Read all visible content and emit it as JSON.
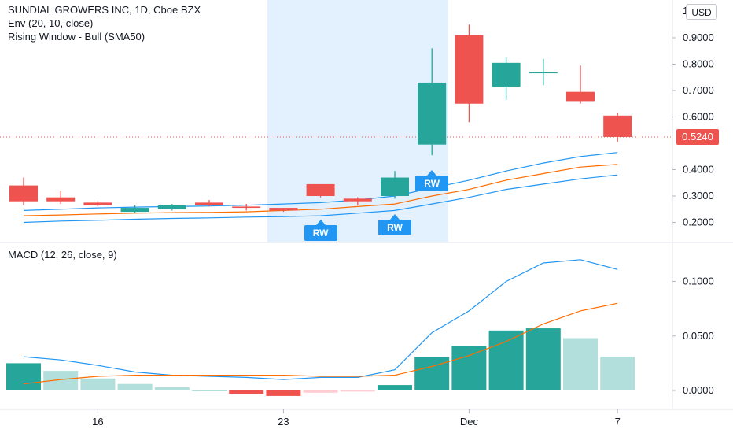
{
  "header": {
    "symbol_line": "SUNDIAL GROWERS INC, 1D, Cboe BZX",
    "indicator_1": "Env (20, 10, close)",
    "indicator_2": "Rising Window - Bull (SMA50)",
    "currency": "USD"
  },
  "price_scale": {
    "labels": [
      "0.9000",
      "0.8000",
      "0.7000",
      "0.6000",
      "0.4000",
      "0.3000",
      "0.2000"
    ],
    "label_values": [
      0.9,
      0.8,
      0.7,
      0.6,
      0.4,
      0.3,
      0.2
    ],
    "top_partial": "1",
    "last_price": "0.5240",
    "last_price_value": 0.524
  },
  "macd": {
    "legend": "MACD (12, 26, close, 9)",
    "scale_labels": [
      "0.1000",
      "0.0500",
      "0.0000"
    ],
    "scale_values": [
      0.1,
      0.05,
      0.0
    ]
  },
  "time_axis": {
    "labels": [
      "16",
      "23",
      "Dec",
      "7"
    ]
  },
  "badges": {
    "rw_label": "RW"
  },
  "colors": {
    "up": "#26a69a",
    "down": "#ef5350",
    "envelope": "#2196f3",
    "basis": "#ff6d00",
    "highlight": "#e3f0fd",
    "hist_up_strong": "#26a69a",
    "hist_up_weak": "#b2dfdb",
    "hist_down_strong": "#ef5350",
    "hist_down_weak": "#ffcdd2"
  },
  "chart_data": {
    "type": "candlestick",
    "candles": [
      {
        "o": 0.34,
        "h": 0.37,
        "l": 0.265,
        "c": 0.28
      },
      {
        "o": 0.295,
        "h": 0.32,
        "l": 0.27,
        "c": 0.28
      },
      {
        "o": 0.275,
        "h": 0.28,
        "l": 0.26,
        "c": 0.265
      },
      {
        "o": 0.24,
        "h": 0.265,
        "l": 0.235,
        "c": 0.255
      },
      {
        "o": 0.25,
        "h": 0.27,
        "l": 0.245,
        "c": 0.265
      },
      {
        "o": 0.275,
        "h": 0.285,
        "l": 0.26,
        "c": 0.265
      },
      {
        "o": 0.26,
        "h": 0.27,
        "l": 0.245,
        "c": 0.255
      },
      {
        "o": 0.255,
        "h": 0.255,
        "l": 0.24,
        "c": 0.245
      },
      {
        "o": 0.345,
        "h": 0.345,
        "l": 0.295,
        "c": 0.3
      },
      {
        "o": 0.29,
        "h": 0.295,
        "l": 0.265,
        "c": 0.28
      },
      {
        "o": 0.3,
        "h": 0.395,
        "l": 0.29,
        "c": 0.37
      },
      {
        "o": 0.495,
        "h": 0.86,
        "l": 0.455,
        "c": 0.73
      },
      {
        "o": 0.91,
        "h": 0.95,
        "l": 0.58,
        "c": 0.65
      },
      {
        "o": 0.715,
        "h": 0.825,
        "l": 0.665,
        "c": 0.805
      },
      {
        "o": 0.77,
        "h": 0.82,
        "l": 0.72,
        "c": 0.77
      },
      {
        "o": 0.695,
        "h": 0.795,
        "l": 0.65,
        "c": 0.66
      },
      {
        "o": 0.605,
        "h": 0.615,
        "l": 0.505,
        "c": 0.524
      }
    ],
    "envelope_upper": [
      0.245,
      0.25,
      0.255,
      0.258,
      0.26,
      0.262,
      0.265,
      0.27,
      0.275,
      0.285,
      0.3,
      0.33,
      0.36,
      0.395,
      0.425,
      0.45,
      0.465
    ],
    "envelope_basis": [
      0.225,
      0.228,
      0.232,
      0.235,
      0.237,
      0.238,
      0.24,
      0.245,
      0.25,
      0.26,
      0.27,
      0.3,
      0.325,
      0.36,
      0.385,
      0.41,
      0.42
    ],
    "envelope_lower": [
      0.2,
      0.205,
      0.208,
      0.212,
      0.215,
      0.217,
      0.22,
      0.222,
      0.225,
      0.235,
      0.245,
      0.27,
      0.295,
      0.325,
      0.345,
      0.365,
      0.38
    ],
    "rising_window_marks": [
      8,
      10,
      11
    ],
    "highlight_range": [
      7,
      11
    ],
    "macd_line": [
      0.031,
      0.028,
      0.023,
      0.017,
      0.014,
      0.013,
      0.012,
      0.01,
      0.012,
      0.012,
      0.019,
      0.053,
      0.073,
      0.1,
      0.117,
      0.12,
      0.111
    ],
    "signal_line": [
      0.006,
      0.01,
      0.013,
      0.014,
      0.014,
      0.014,
      0.014,
      0.014,
      0.013,
      0.013,
      0.014,
      0.022,
      0.032,
      0.045,
      0.061,
      0.073,
      0.08
    ],
    "histogram": [
      0.025,
      0.018,
      0.011,
      0.006,
      0.003,
      0.0,
      -0.003,
      -0.005,
      -0.002,
      -0.001,
      0.005,
      0.031,
      0.041,
      0.055,
      0.057,
      0.048,
      0.031
    ]
  }
}
